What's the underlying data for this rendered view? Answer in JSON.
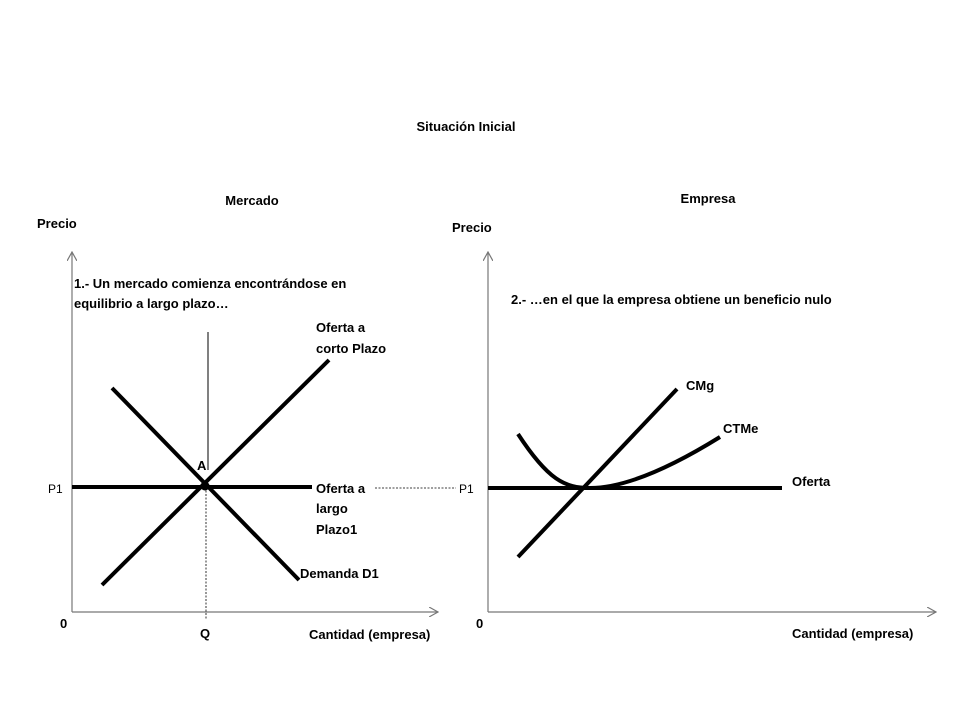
{
  "title": "Situación Inicial",
  "left_panel": {
    "heading": "Mercado",
    "y_axis_label": "Precio",
    "x_axis_label": "Cantidad (empresa)",
    "origin_label": "0",
    "note_line1": "1.- Un mercado  comienza encontrándose en",
    "note_line2": "equilibrio a largo plazo…",
    "short_run_supply_line1": "Oferta a",
    "short_run_supply_line2": "corto Plazo",
    "long_run_supply_line1": "Oferta a",
    "long_run_supply_line2": "largo",
    "long_run_supply_line3": "Plazo1",
    "demand_label": "Demanda D1",
    "equilibrium_label": "A",
    "price_label": "P1",
    "quantity_label": "Q"
  },
  "right_panel": {
    "heading": "Empresa",
    "y_axis_label": "Precio",
    "x_axis_label": "Cantidad (empresa)",
    "origin_label": "0",
    "note": "2.- …en el que la empresa obtiene un beneficio nulo",
    "marginal_cost_label": "CMg",
    "average_cost_label": "CTMe",
    "supply_label": "Oferta",
    "price_label": "P1"
  }
}
